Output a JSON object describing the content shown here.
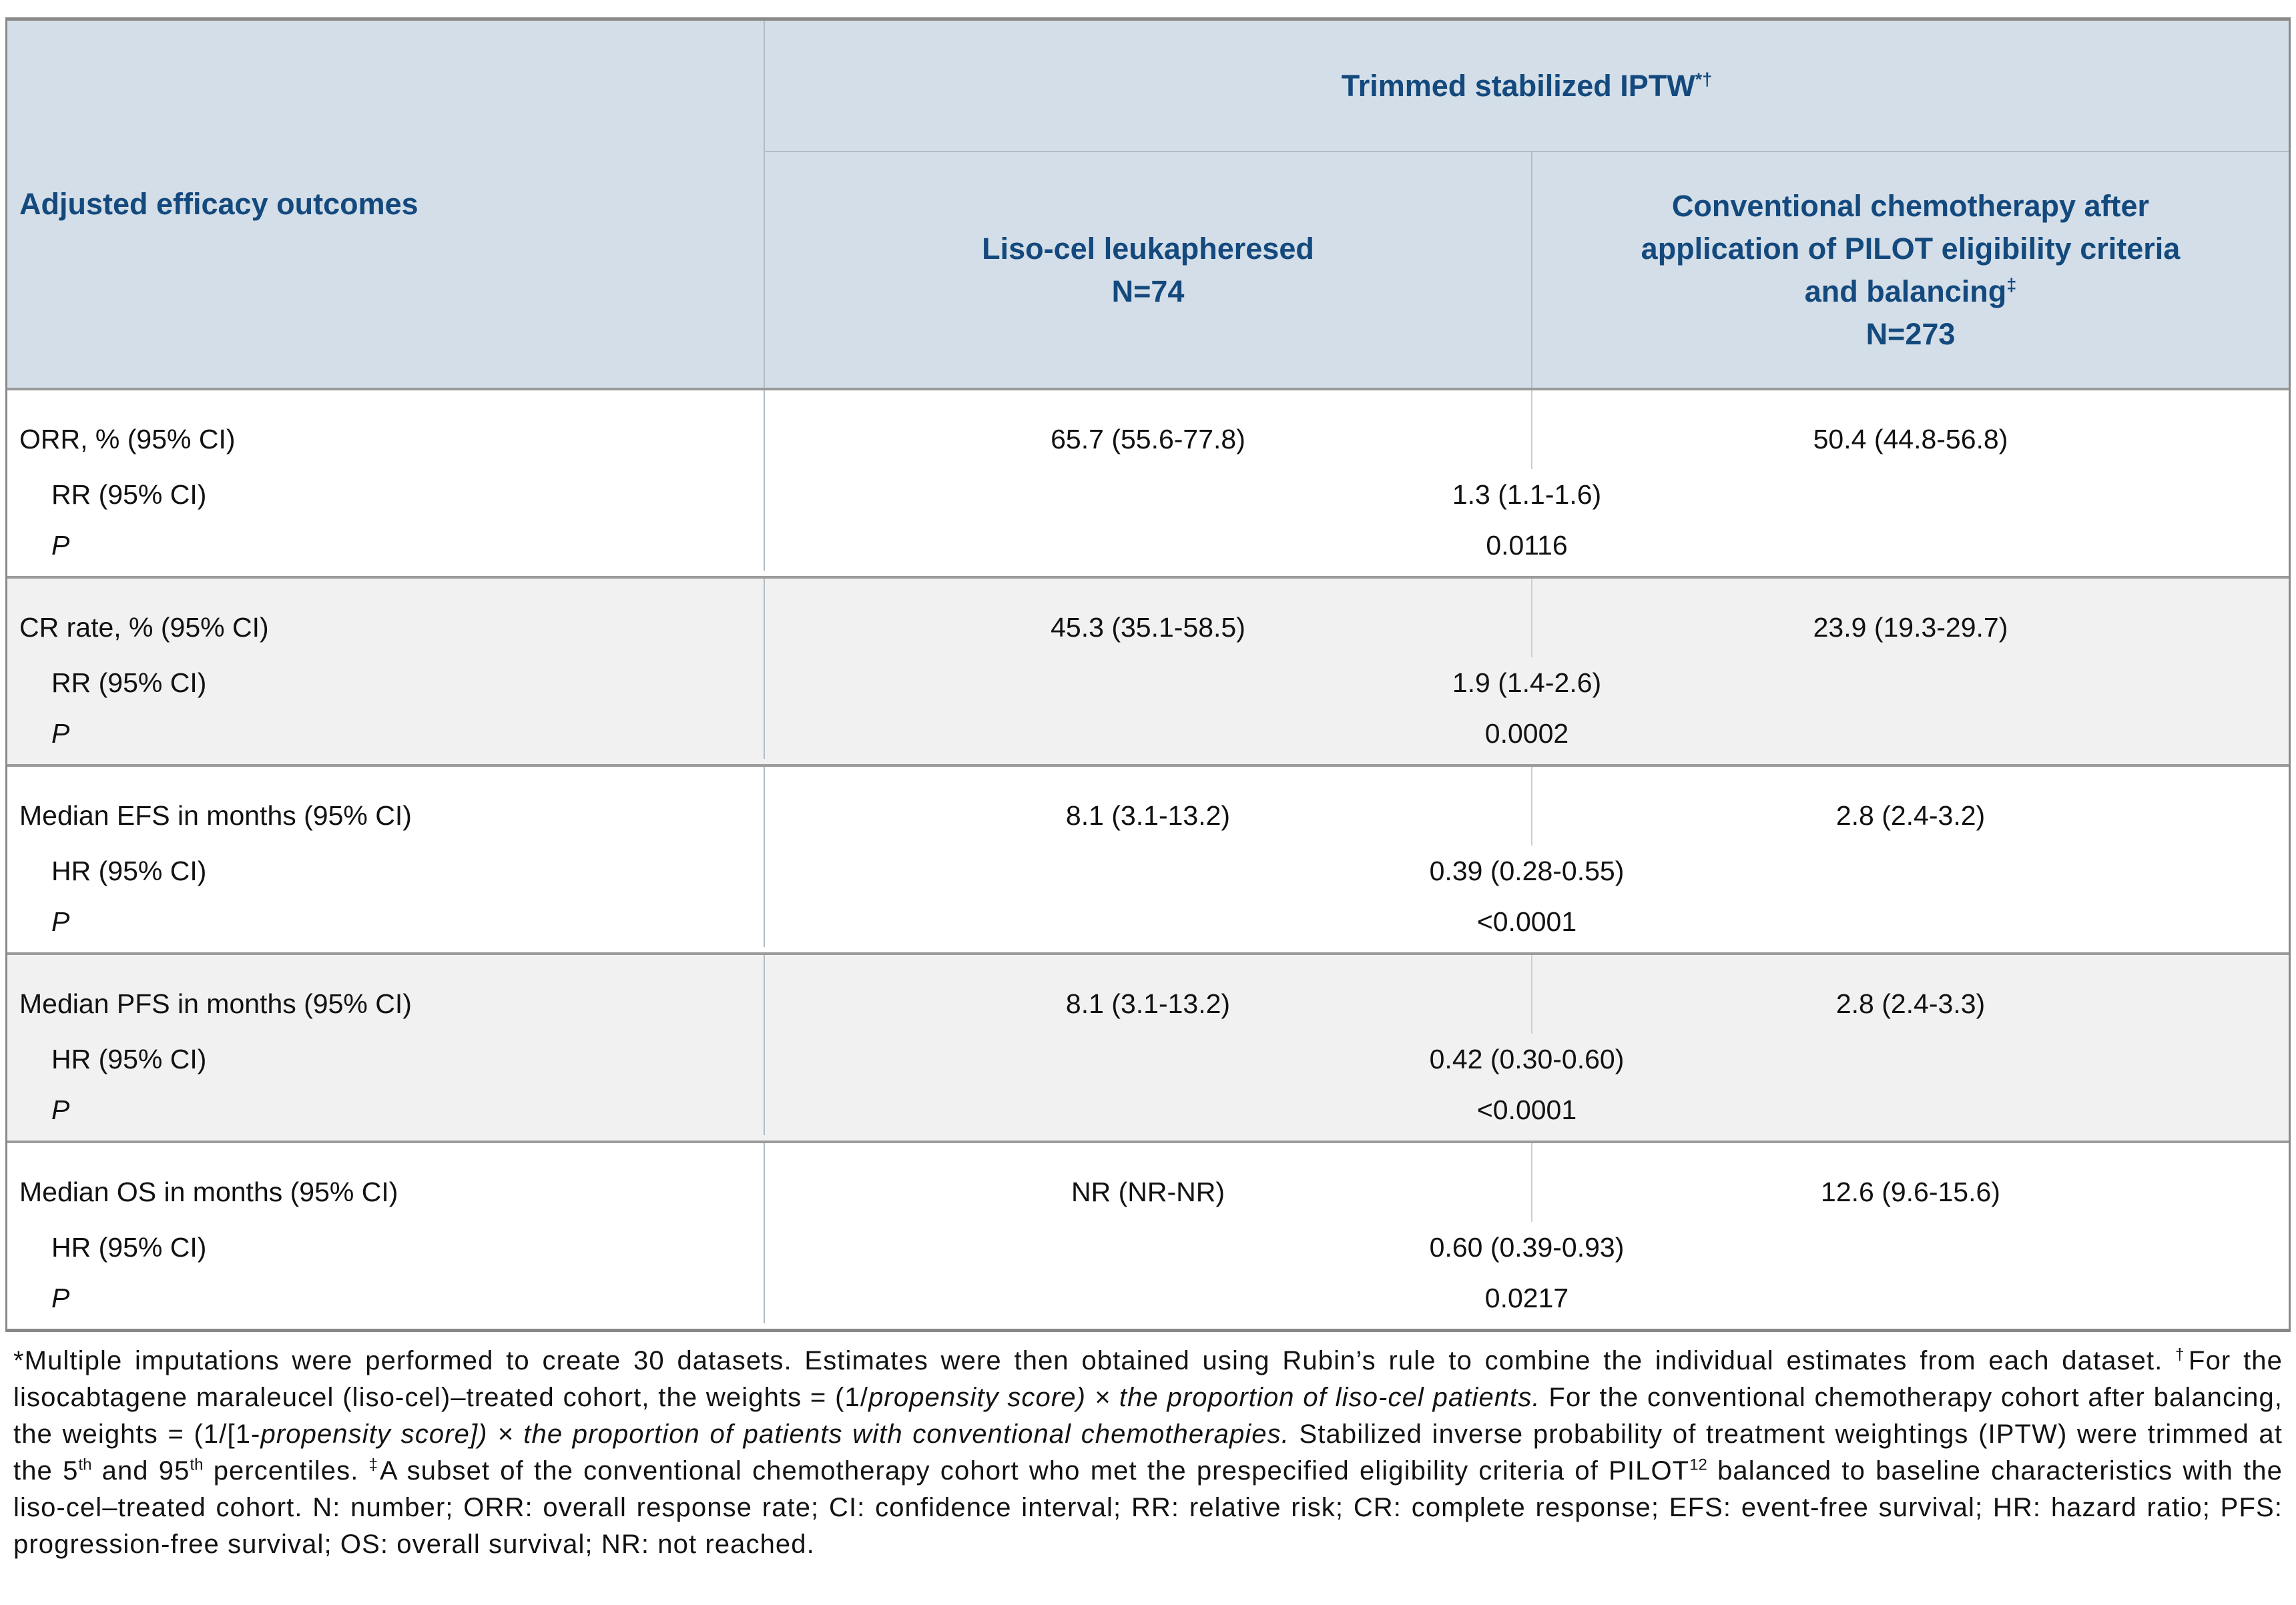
{
  "table": {
    "header": {
      "outcomes_label": "Adjusted efficacy outcomes",
      "span_title": "Trimmed stabilized IPTW",
      "span_title_marker": "*†",
      "col_lisocel": {
        "line1": "Liso-cel leukapheresed",
        "n": "N=74"
      },
      "col_chemo": {
        "line1": "Conventional chemotherapy after",
        "line2": "application of PILOT eligibility criteria",
        "line3": "and balancing",
        "marker": "‡",
        "n": "N=273"
      }
    },
    "rows": [
      {
        "label": "ORR, % (95% CI)",
        "stat_label": "RR (95% CI)",
        "p_label": "P",
        "v1": "65.7 (55.6-77.8)",
        "v2": "50.4 (44.8-56.8)",
        "ratio": "1.3 (1.1-1.6)",
        "p": "0.0116"
      },
      {
        "label": "CR rate, % (95% CI)",
        "stat_label": "RR (95% CI)",
        "p_label": "P",
        "v1": "45.3 (35.1-58.5)",
        "v2": "23.9 (19.3-29.7)",
        "ratio": "1.9 (1.4-2.6)",
        "p": "0.0002"
      },
      {
        "label": "Median EFS in months (95% CI)",
        "stat_label": "HR (95% CI)",
        "p_label": "P",
        "v1": "8.1 (3.1-13.2)",
        "v2": "2.8 (2.4-3.2)",
        "ratio": "0.39 (0.28-0.55)",
        "p": "<0.0001"
      },
      {
        "label": "Median PFS in months (95% CI)",
        "stat_label": "HR (95% CI)",
        "p_label": "P",
        "v1": "8.1 (3.1-13.2)",
        "v2": "2.8 (2.4-3.3)",
        "ratio": "0.42 (0.30-0.60)",
        "p": "<0.0001"
      },
      {
        "label": "Median OS in months (95% CI)",
        "stat_label": "HR (95% CI)",
        "p_label": "P",
        "v1": "NR (NR-NR)",
        "v2": "12.6 (9.6-15.6)",
        "ratio": "0.60 (0.39-0.93)",
        "p": "0.0217"
      }
    ]
  },
  "footnote": {
    "segments": [
      {
        "text": "*Multiple imputations were performed to create 30 datasets. Estimates were then obtained using Rubin’s rule to combine the individual estimates from each dataset. "
      },
      {
        "text": "†"
      },
      {
        "text": "For the lisocabtagene maraleucel (liso-cel)–treated cohort, the weights = (1/"
      },
      {
        "text": "propensity score) × the proportion of liso-cel patients."
      },
      {
        "text": " For the conventional chemotherapy cohort after balancing, the weights = (1/[1-"
      },
      {
        "text": "propensity score]) × the proportion of patients with conventional chemotherapies."
      },
      {
        "text": " Stabilized inverse probability of treatment weightings (IPTW) were trimmed at the 5"
      },
      {
        "text": "th"
      },
      {
        "text": " and 95"
      },
      {
        "text": "th"
      },
      {
        "text": " percentiles. "
      },
      {
        "text": "‡"
      },
      {
        "text": "A subset of the conventional chemotherapy cohort who met the prespecified eligibility criteria of PILOT"
      },
      {
        "text": "12"
      },
      {
        "text": " balanced to baseline characteristics with the liso-cel–treated cohort. N: number; ORR: overall response rate; CI: confidence interval; RR: relative risk; CR: complete response; EFS: event-free survival; HR: hazard ratio; PFS: progression-free survival; OS: overall survival; NR: not reached."
      }
    ]
  },
  "colors": {
    "header_bg": "#d3dee8",
    "header_text": "#14497d",
    "row_alt_bg": "#f1f1f1",
    "heavy_border": "#9b9b9b",
    "light_border": "#b3bcc4"
  }
}
